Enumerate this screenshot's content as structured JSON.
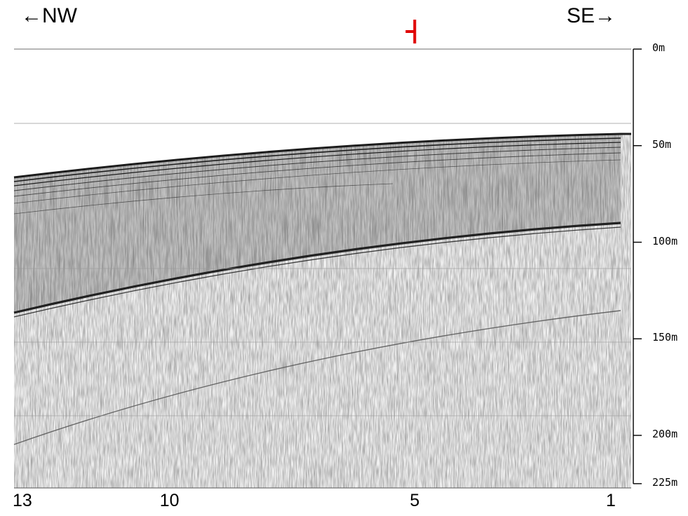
{
  "header": {
    "left_direction": "←NW",
    "right_direction": "SE→"
  },
  "colors": {
    "marker": "#e00000",
    "strong_reflector": "#222222",
    "noise": "#7a7a7a",
    "gridline": "#9a9a9a"
  },
  "depth_axis": {
    "unit": "m",
    "max": 225,
    "ticks": [
      {
        "value": 0,
        "label": "0m"
      },
      {
        "value": 50,
        "label": "50m"
      },
      {
        "value": 100,
        "label": "100m"
      },
      {
        "value": 150,
        "label": "150m"
      },
      {
        "value": 200,
        "label": "200m"
      },
      {
        "value": 225,
        "label": "225m"
      }
    ]
  },
  "distance_axis": {
    "ticks": [
      {
        "value": 13,
        "label": "13"
      },
      {
        "value": 10,
        "label": "10"
      },
      {
        "value": 5,
        "label": "5"
      },
      {
        "value": 1,
        "label": "1"
      }
    ]
  },
  "marker": {
    "position": 5
  }
}
